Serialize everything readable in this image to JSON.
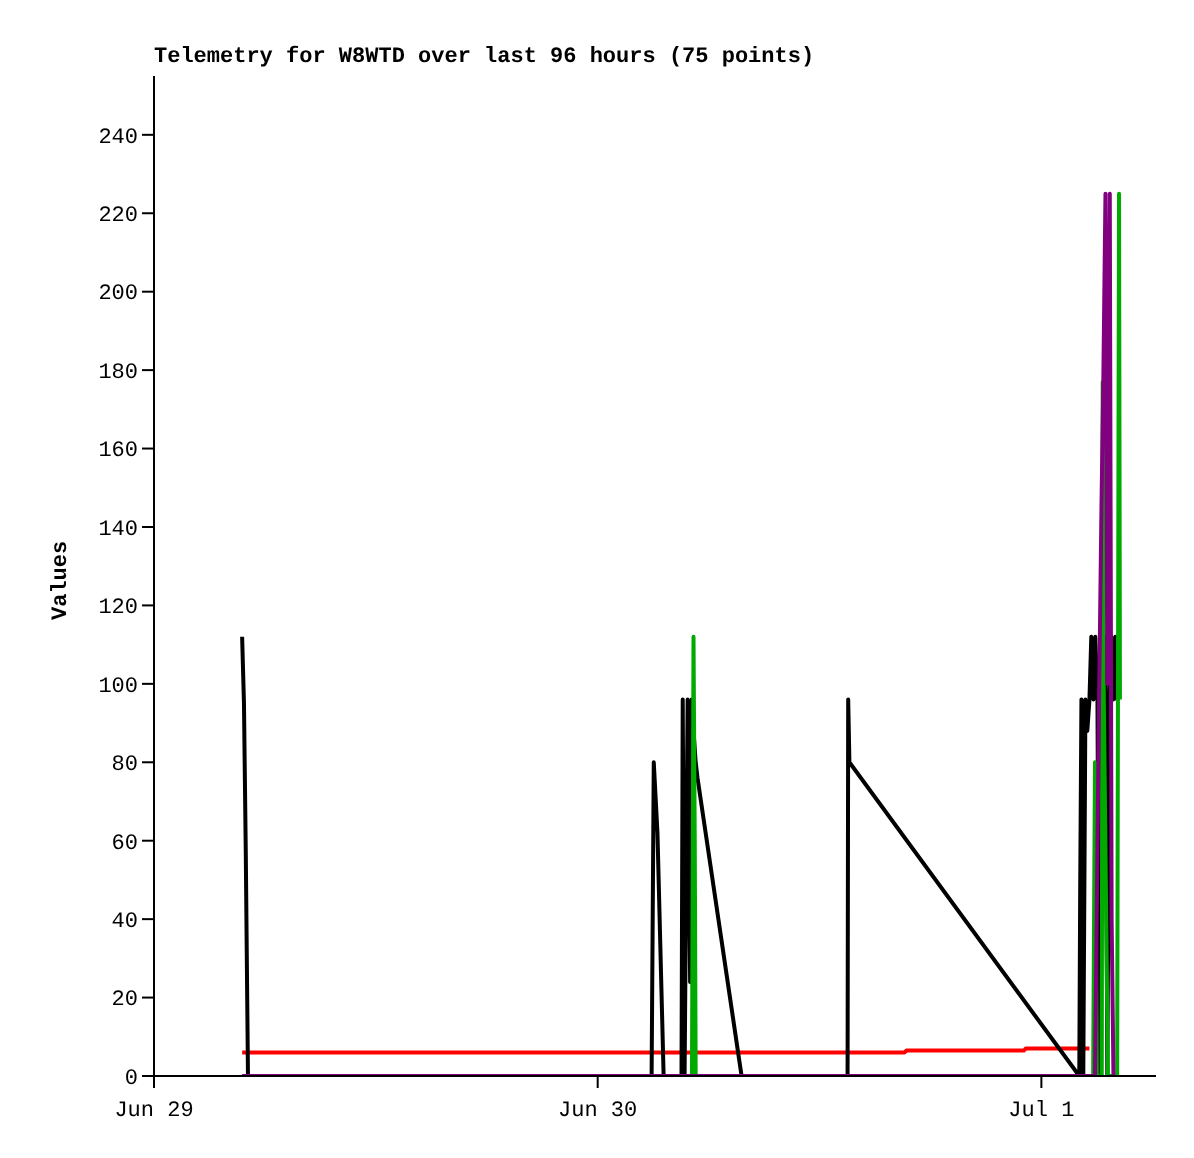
{
  "chart_data": {
    "type": "line",
    "title": "Telemetry for W8WTD over last 96 hours (75 points)",
    "ylabel": "Values",
    "xlim": [
      "--06-29",
      "--07-01T06:12"
    ],
    "xticks": [
      {
        "value": "--06-29",
        "label": "Jun 29"
      },
      {
        "value": "--06-30",
        "label": "Jun 30"
      },
      {
        "value": "--07-01",
        "label": "Jul 1"
      }
    ],
    "ylim": [
      0,
      255
    ],
    "yticks": [
      0,
      20,
      40,
      60,
      80,
      100,
      120,
      140,
      160,
      180,
      200,
      220,
      240
    ],
    "grid": false,
    "legend": false,
    "marker": "none",
    "line_style": "solid",
    "series": [
      {
        "color": "#ff0000",
        "x": [
          "--06-29T04:46",
          "--06-30T16:36",
          "--06-30T16:42",
          "--06-30T23:03",
          "--06-30T23:09",
          "--07-01T02:36"
        ],
        "values": [
          6,
          6,
          6.5,
          6.5,
          7,
          7
        ]
      },
      {
        "color": "#000000",
        "x": [
          "--06-29T04:46",
          "--06-29T04:52",
          "--06-29T04:58",
          "--06-29T05:05",
          "--06-30T02:55",
          "--06-30T03:02",
          "--06-30T03:14",
          "--06-30T03:34",
          "--06-30T04:32",
          "--06-30T04:36",
          "--06-30T04:42",
          "--06-30T04:52",
          "--06-30T05:00",
          "--06-30T05:05",
          "--06-30T05:11",
          "--06-30T05:18",
          "--06-30T05:24",
          "--06-30T07:47",
          "--06-30T13:31",
          "--06-30T13:33",
          "--06-30T13:37",
          "--07-01T02:03",
          "--07-01T02:06",
          "--07-01T02:10",
          "--07-01T02:16",
          "--07-01T02:23",
          "--07-01T02:29",
          "--07-01T02:36",
          "--07-01T02:42",
          "--07-01T02:49",
          "--07-01T02:55",
          "--07-01T03:02",
          "--07-01T03:08",
          "--07-01T03:14",
          "--07-01T03:21",
          "--07-01T03:28",
          "--07-01T03:34",
          "--07-01T03:41",
          "--07-01T03:47",
          "--07-01T03:53",
          "--07-01T04:00",
          "--07-01T04:06",
          "--07-01T04:12"
        ],
        "values": [
          112,
          95,
          56,
          0,
          0,
          80,
          62,
          0,
          0,
          96,
          0,
          96,
          24,
          96,
          88,
          80,
          76,
          0,
          0,
          96,
          80,
          0,
          48,
          96,
          0,
          96,
          88,
          96,
          112,
          96,
          112,
          96,
          0,
          112,
          96,
          112,
          0,
          96,
          112,
          96,
          112,
          96,
          112
        ]
      },
      {
        "color": "#00aa00",
        "x": [
          "--06-29T04:46",
          "--06-30T05:06",
          "--06-30T05:11",
          "--06-30T05:15",
          "--06-30T05:18",
          "--07-01T02:48",
          "--07-01T02:54",
          "--07-01T03:00",
          "--07-01T03:16",
          "--07-01T03:19",
          "--07-01T03:22",
          "--07-01T03:36",
          "--07-01T04:06",
          "--07-01T04:12",
          "--07-01T04:15"
        ],
        "values": [
          0,
          0,
          112,
          60,
          0,
          0,
          80,
          0,
          0,
          177,
          100,
          0,
          0,
          225,
          96
        ]
      },
      {
        "color": "#800080",
        "x": [
          "--06-29T04:46",
          "--07-01T02:54",
          "--07-01T03:06",
          "--07-01T03:15",
          "--07-01T03:21",
          "--07-01T03:28",
          "--07-01T03:34",
          "--07-01T03:42",
          "--07-01T03:48",
          "--07-01T03:54"
        ],
        "values": [
          0,
          0,
          88,
          145,
          177,
          225,
          100,
          225,
          40,
          0
        ]
      }
    ]
  }
}
